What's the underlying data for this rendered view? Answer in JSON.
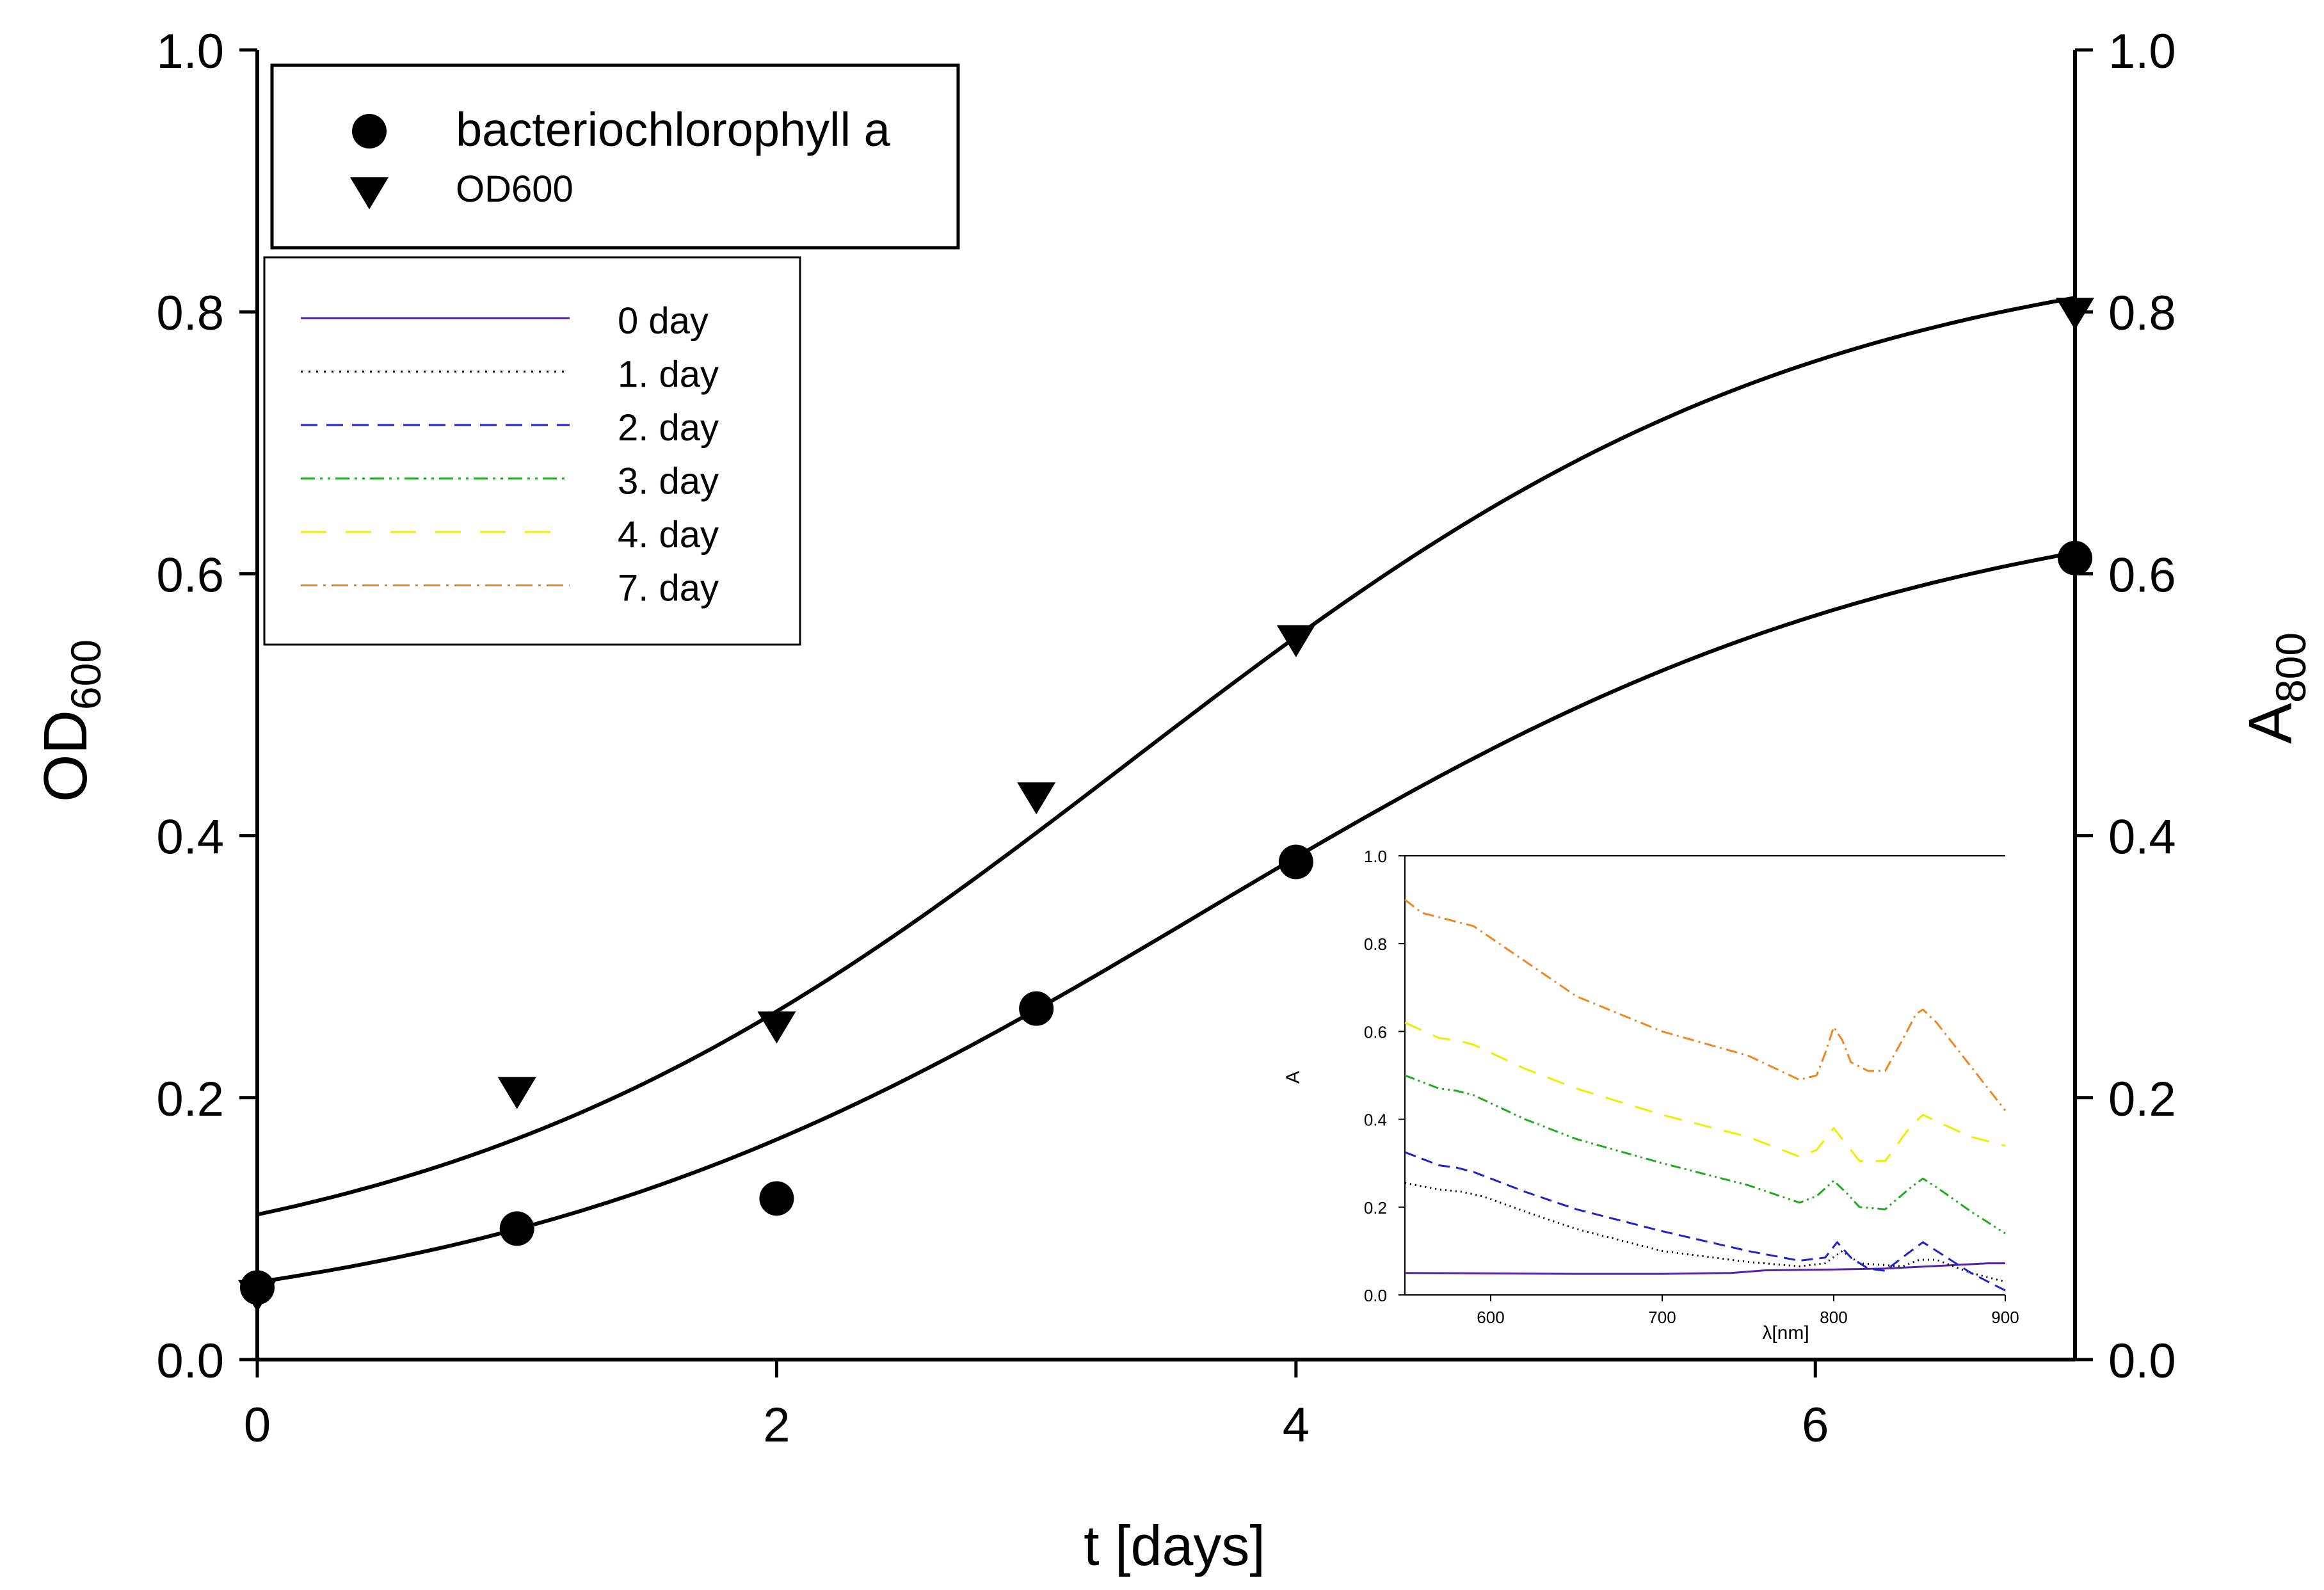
{
  "chart_data": [
    {
      "type": "scatter",
      "title": "",
      "xlabel": "t [days]",
      "ylabel_main": "OD",
      "ylabel_sub": "600",
      "y2label_main": "A",
      "y2label_sub": "800",
      "xlim": [
        0,
        7
      ],
      "ylim": [
        0,
        1.0
      ],
      "y2lim": [
        0,
        1.0
      ],
      "x_ticks": [
        0,
        2,
        4,
        6
      ],
      "x_tick_labels": [
        "0",
        "2",
        "4",
        "6"
      ],
      "y_ticks": [
        0,
        0.2,
        0.4,
        0.6,
        0.8,
        1.0
      ],
      "y_tick_labels": [
        "0.0",
        "0.2",
        "0.4",
        "0.6",
        "0.8",
        "1.0"
      ],
      "y2_tick_labels": [
        "0.0",
        "0.2",
        "0.4",
        "0.6",
        "0.8",
        "1.0"
      ],
      "legend_position": "top-left",
      "series": [
        {
          "name": "bacteriochlorophyll a",
          "marker": "circle",
          "x": [
            0,
            1,
            2,
            3,
            4,
            7
          ],
          "y": [
            0.055,
            0.1,
            0.123,
            0.268,
            0.38,
            0.612
          ],
          "fit": {
            "type": "sigmoid",
            "ymin": 0.015,
            "ymax": 0.67,
            "x0": 3.65,
            "k": 0.72
          }
        },
        {
          "name": "OD600",
          "marker": "triangle-down",
          "x": [
            0,
            1,
            2,
            3,
            4,
            7
          ],
          "y": [
            0.05,
            0.205,
            0.255,
            0.43,
            0.55,
            0.8
          ],
          "fit": {
            "type": "sigmoid",
            "ymin": 0.05,
            "ymax": 0.86,
            "x0": 3.35,
            "k": 0.75
          }
        }
      ]
    },
    {
      "type": "line",
      "title": "",
      "xlabel": "λ[nm]",
      "ylabel": "A",
      "xlim": [
        550,
        900
      ],
      "ylim": [
        0,
        1.0
      ],
      "x_ticks": [
        600,
        700,
        800,
        900
      ],
      "x_tick_labels": [
        "600",
        "700",
        "800",
        "900"
      ],
      "y_ticks": [
        0,
        0.2,
        0.4,
        0.6,
        0.8,
        1.0
      ],
      "y_tick_labels": [
        "0.0",
        "0.2",
        "0.4",
        "0.6",
        "0.8",
        "1.0"
      ],
      "legend_position": "outside-left",
      "series": [
        {
          "name": "0 day",
          "color": "#5522aa",
          "dash": "solid",
          "x": [
            550,
            600,
            650,
            700,
            740,
            760,
            800,
            830,
            870,
            890,
            900
          ],
          "y": [
            0.05,
            0.049,
            0.048,
            0.048,
            0.05,
            0.056,
            0.058,
            0.06,
            0.068,
            0.072,
            0.072
          ]
        },
        {
          "name": "1. day",
          "color": "#000000",
          "dash": "dotted",
          "x": [
            550,
            570,
            583,
            595,
            620,
            650,
            700,
            750,
            780,
            795,
            805,
            815,
            840,
            850,
            860,
            880,
            900
          ],
          "y": [
            0.255,
            0.24,
            0.235,
            0.225,
            0.19,
            0.15,
            0.1,
            0.075,
            0.065,
            0.072,
            0.1,
            0.072,
            0.065,
            0.08,
            0.08,
            0.05,
            0.03
          ]
        },
        {
          "name": "2. day",
          "color": "#2222cc",
          "dash": "long-dash",
          "x": [
            550,
            570,
            580,
            590,
            620,
            650,
            700,
            750,
            780,
            795,
            802,
            810,
            820,
            830,
            845,
            852,
            860,
            880,
            900
          ],
          "y": [
            0.325,
            0.295,
            0.29,
            0.28,
            0.235,
            0.195,
            0.145,
            0.1,
            0.078,
            0.085,
            0.12,
            0.085,
            0.06,
            0.055,
            0.1,
            0.12,
            0.1,
            0.05,
            0.01
          ]
        },
        {
          "name": "3. day",
          "color": "#22aa22",
          "dash": "dash-dot-dot",
          "x": [
            550,
            570,
            580,
            590,
            620,
            650,
            700,
            750,
            780,
            790,
            800,
            808,
            815,
            830,
            845,
            852,
            860,
            880,
            900
          ],
          "y": [
            0.5,
            0.47,
            0.465,
            0.455,
            0.4,
            0.355,
            0.3,
            0.25,
            0.21,
            0.225,
            0.26,
            0.23,
            0.2,
            0.195,
            0.245,
            0.265,
            0.245,
            0.19,
            0.14
          ]
        },
        {
          "name": "4. day",
          "color": "#eeee00",
          "dash": "long-dash-gap",
          "x": [
            550,
            570,
            580,
            590,
            620,
            650,
            700,
            750,
            780,
            790,
            800,
            808,
            815,
            830,
            845,
            852,
            860,
            880,
            900
          ],
          "y": [
            0.62,
            0.585,
            0.58,
            0.57,
            0.515,
            0.47,
            0.41,
            0.36,
            0.315,
            0.33,
            0.38,
            0.34,
            0.305,
            0.305,
            0.385,
            0.41,
            0.395,
            0.36,
            0.34
          ]
        },
        {
          "name": "7. day",
          "color": "#ee8822",
          "dash": "dash-dot",
          "x": [
            550,
            560,
            570,
            580,
            590,
            620,
            650,
            700,
            750,
            780,
            790,
            795,
            800,
            805,
            810,
            820,
            830,
            840,
            848,
            852,
            860,
            880,
            900
          ],
          "y": [
            0.9,
            0.87,
            0.86,
            0.85,
            0.84,
            0.76,
            0.68,
            0.6,
            0.545,
            0.49,
            0.5,
            0.55,
            0.61,
            0.58,
            0.53,
            0.51,
            0.51,
            0.58,
            0.64,
            0.65,
            0.62,
            0.52,
            0.42
          ]
        }
      ]
    }
  ]
}
